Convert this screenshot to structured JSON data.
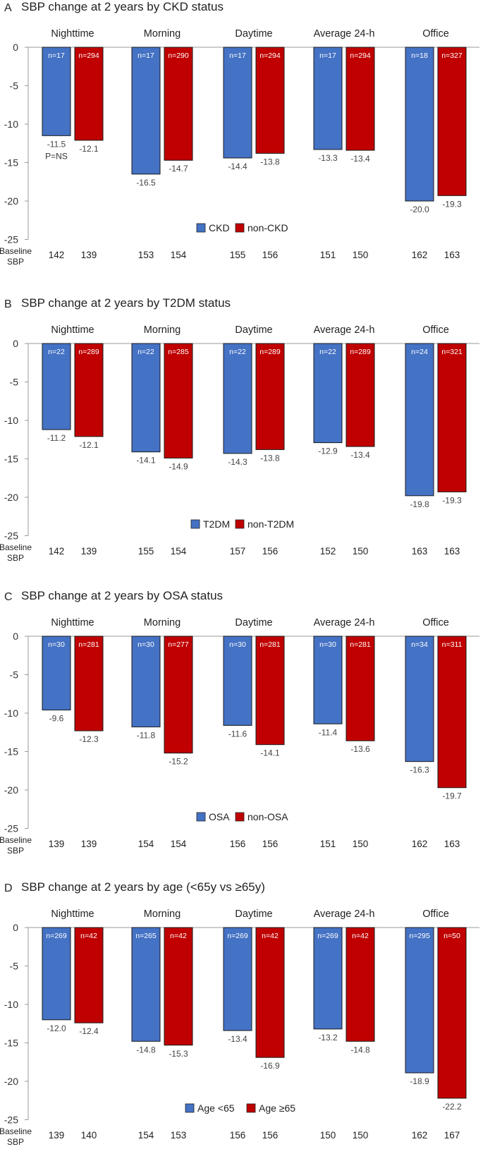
{
  "figure": {
    "baseline_label_line1": "Baseline",
    "baseline_label_line2": "SBP"
  },
  "chart_data": [
    {
      "type": "bar",
      "panel_letter": "A",
      "title": "SBP change at 2 years by CKD status",
      "categories": [
        "Nighttime",
        "Morning",
        "Daytime",
        "Average 24-h",
        "Office"
      ],
      "ylim": [
        -25,
        0
      ],
      "yticks": [
        0,
        -5,
        -10,
        -15,
        -20,
        -25
      ],
      "series": [
        {
          "name": "CKD",
          "color": "#4472C4",
          "values": [
            -11.5,
            -16.5,
            -14.4,
            -13.3,
            -20.0
          ],
          "n": [
            "n=17",
            "n=17",
            "n=17",
            "n=17",
            "n=18"
          ],
          "baseline": [
            142,
            153,
            155,
            151,
            162
          ]
        },
        {
          "name": "non-CKD",
          "color": "#C00000",
          "values": [
            -12.1,
            -14.7,
            -13.8,
            -13.4,
            -19.3
          ],
          "n": [
            "n=294",
            "n=290",
            "n=294",
            "n=294",
            "n=327"
          ],
          "baseline": [
            139,
            154,
            156,
            150,
            163
          ]
        }
      ],
      "annotation": "P=NS"
    },
    {
      "type": "bar",
      "panel_letter": "B",
      "title": "SBP change at 2 years by T2DM status",
      "categories": [
        "Nighttime",
        "Morning",
        "Daytime",
        "Average 24-h",
        "Office"
      ],
      "ylim": [
        -25,
        0
      ],
      "yticks": [
        0,
        -5,
        -10,
        -15,
        -20,
        -25
      ],
      "series": [
        {
          "name": "T2DM",
          "color": "#4472C4",
          "values": [
            -11.2,
            -14.1,
            -14.3,
            -12.9,
            -19.8
          ],
          "n": [
            "n=22",
            "n=22",
            "n=22",
            "n=22",
            "n=24"
          ],
          "baseline": [
            142,
            155,
            157,
            152,
            163
          ]
        },
        {
          "name": "non-T2DM",
          "color": "#C00000",
          "values": [
            -12.1,
            -14.9,
            -13.8,
            -13.4,
            -19.3
          ],
          "n": [
            "n=289",
            "n=285",
            "n=289",
            "n=289",
            "n=321"
          ],
          "baseline": [
            139,
            154,
            156,
            150,
            163
          ]
        }
      ]
    },
    {
      "type": "bar",
      "panel_letter": "C",
      "title": "SBP change at 2 years by OSA status",
      "categories": [
        "Nighttime",
        "Morning",
        "Daytime",
        "Average 24-h",
        "Office"
      ],
      "ylim": [
        -25,
        0
      ],
      "yticks": [
        0,
        -5,
        -10,
        -15,
        -20,
        -25
      ],
      "series": [
        {
          "name": "OSA",
          "color": "#4472C4",
          "values": [
            -9.6,
            -11.8,
            -11.6,
            -11.4,
            -16.3
          ],
          "n": [
            "n=30",
            "n=30",
            "n=30",
            "n=30",
            "n=34"
          ],
          "baseline": [
            139,
            154,
            156,
            151,
            162
          ]
        },
        {
          "name": "non-OSA",
          "color": "#C00000",
          "values": [
            -12.3,
            -15.2,
            -14.1,
            -13.6,
            -19.7
          ],
          "n": [
            "n=281",
            "n=277",
            "n=281",
            "n=281",
            "n=311"
          ],
          "baseline": [
            139,
            154,
            156,
            150,
            163
          ]
        }
      ]
    },
    {
      "type": "bar",
      "panel_letter": "D",
      "title": "SBP change at 2 years by age (<65y vs ≥65y)",
      "categories": [
        "Nighttime",
        "Morning",
        "Daytime",
        "Average 24-h",
        "Office"
      ],
      "ylim": [
        -25,
        0
      ],
      "yticks": [
        0,
        -5,
        -10,
        -15,
        -20,
        -25
      ],
      "series": [
        {
          "name": "Age <65",
          "color": "#4472C4",
          "values": [
            -12.0,
            -14.8,
            -13.4,
            -13.2,
            -18.9
          ],
          "n": [
            "n=269",
            "n=265",
            "n=269",
            "n=269",
            "n=295"
          ],
          "baseline": [
            139,
            154,
            156,
            150,
            162
          ]
        },
        {
          "name": "Age ≥65",
          "color": "#C00000",
          "values": [
            -12.4,
            -15.3,
            -16.9,
            -14.8,
            -22.2
          ],
          "n": [
            "n=42",
            "n=42",
            "n=42",
            "n=42",
            "n=50"
          ],
          "baseline": [
            140,
            153,
            156,
            150,
            167
          ]
        }
      ]
    }
  ]
}
